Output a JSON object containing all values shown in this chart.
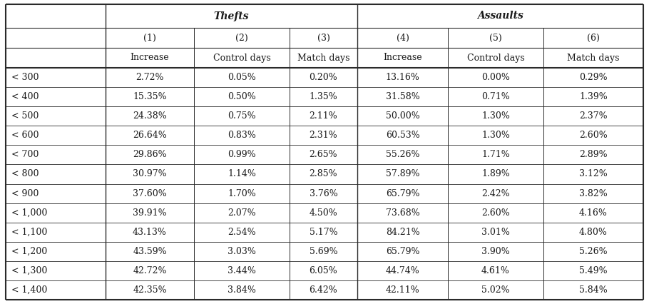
{
  "header_group1": "Thefts",
  "header_group2": "Assaults",
  "col_numbers": [
    "(1)",
    "(2)",
    "(3)",
    "(4)",
    "(5)",
    "(6)"
  ],
  "col_labels": [
    "Increase",
    "Control days",
    "Match days",
    "Increase",
    "Control days",
    "Match days"
  ],
  "row_labels": [
    "< 300",
    "< 400",
    "< 500",
    "< 600",
    "< 700",
    "< 800",
    "< 900",
    "< 1,000",
    "< 1,100",
    "< 1,200",
    "< 1,300",
    "< 1,400"
  ],
  "data": [
    [
      "2.72%",
      "0.05%",
      "0.20%",
      "13.16%",
      "0.00%",
      "0.29%"
    ],
    [
      "15.35%",
      "0.50%",
      "1.35%",
      "31.58%",
      "0.71%",
      "1.39%"
    ],
    [
      "24.38%",
      "0.75%",
      "2.11%",
      "50.00%",
      "1.30%",
      "2.37%"
    ],
    [
      "26.64%",
      "0.83%",
      "2.31%",
      "60.53%",
      "1.30%",
      "2.60%"
    ],
    [
      "29.86%",
      "0.99%",
      "2.65%",
      "55.26%",
      "1.71%",
      "2.89%"
    ],
    [
      "30.97%",
      "1.14%",
      "2.85%",
      "57.89%",
      "1.89%",
      "3.12%"
    ],
    [
      "37.60%",
      "1.70%",
      "3.76%",
      "65.79%",
      "2.42%",
      "3.82%"
    ],
    [
      "39.91%",
      "2.07%",
      "4.50%",
      "73.68%",
      "2.60%",
      "4.16%"
    ],
    [
      "43.13%",
      "2.54%",
      "5.17%",
      "84.21%",
      "3.01%",
      "4.80%"
    ],
    [
      "43.59%",
      "3.03%",
      "5.69%",
      "65.79%",
      "3.90%",
      "5.26%"
    ],
    [
      "42.72%",
      "3.44%",
      "6.05%",
      "44.74%",
      "4.61%",
      "5.49%"
    ],
    [
      "42.35%",
      "3.84%",
      "6.42%",
      "42.11%",
      "5.02%",
      "5.84%"
    ]
  ],
  "bg_color": "#ffffff",
  "text_color": "#1a1a1a",
  "border_color": "#2a2a2a",
  "font_size": 9.0,
  "header_font_size": 10.0,
  "fig_width": 9.1,
  "fig_height": 4.26,
  "dpi": 100
}
